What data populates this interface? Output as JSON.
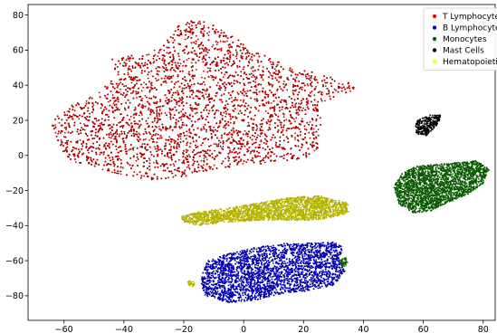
{
  "chart_data": {
    "type": "scatter",
    "title": "",
    "xlabel": "",
    "ylabel": "",
    "xlim": [
      -72,
      84
    ],
    "ylim": [
      -94,
      86
    ],
    "xticks": [
      -60,
      -40,
      -20,
      0,
      20,
      40,
      60,
      80
    ],
    "yticks": [
      -80,
      -60,
      -40,
      -20,
      0,
      20,
      40,
      60,
      80
    ],
    "grid": false,
    "legend_position": "top-right",
    "series": [
      {
        "name": "T Lymphocytes",
        "legend_label": "T Lymphocyte",
        "marker_color": "#ff0000",
        "point_color": "#b30000",
        "clusters": [
          {
            "shape": "polygon",
            "outline": [
              [
                -65,
                20
              ],
              [
                -58,
                28
              ],
              [
                -48,
                36
              ],
              [
                -43,
                46
              ],
              [
                -44,
                56
              ],
              [
                -33,
                58
              ],
              [
                -27,
                62
              ],
              [
                -24,
                70
              ],
              [
                -20,
                77
              ],
              [
                -12,
                76
              ],
              [
                -6,
                70
              ],
              [
                0,
                64
              ],
              [
                5,
                58
              ],
              [
                10,
                55
              ],
              [
                15,
                50
              ],
              [
                22,
                48
              ],
              [
                30,
                44
              ],
              [
                35,
                42
              ],
              [
                38,
                40
              ],
              [
                37,
                37
              ],
              [
                30,
                33
              ],
              [
                25,
                27
              ],
              [
                26,
                20
              ],
              [
                25,
                12
              ],
              [
                25,
                4
              ],
              [
                20,
                -2
              ],
              [
                10,
                -4
              ],
              [
                0,
                -6
              ],
              [
                -10,
                -8
              ],
              [
                -20,
                -12
              ],
              [
                -30,
                -14
              ],
              [
                -38,
                -12
              ],
              [
                -48,
                -8
              ],
              [
                -58,
                -3
              ],
              [
                -62,
                5
              ],
              [
                -63,
                12
              ]
            ],
            "count": 9000
          }
        ]
      },
      {
        "name": "B Lymphocytes",
        "legend_label": "B Lymphocyte",
        "marker_color": "#0000cc",
        "point_color": "#0000b3",
        "clusters": [
          {
            "shape": "polygon",
            "outline": [
              [
                -14,
                -68
              ],
              [
                -12,
                -60
              ],
              [
                -5,
                -56
              ],
              [
                5,
                -52
              ],
              [
                15,
                -50
              ],
              [
                25,
                -50
              ],
              [
                30,
                -49
              ],
              [
                33,
                -52
              ],
              [
                32,
                -60
              ],
              [
                34,
                -66
              ],
              [
                30,
                -74
              ],
              [
                22,
                -77
              ],
              [
                12,
                -79
              ],
              [
                3,
                -83
              ],
              [
                -5,
                -84
              ],
              [
                -13,
                -80
              ],
              [
                -14,
                -74
              ]
            ],
            "count": 4200
          }
        ]
      },
      {
        "name": "Monocytes",
        "legend_label": "Monocytes",
        "marker_color": "#006400",
        "point_color": "#0a5a00",
        "clusters": [
          {
            "shape": "polygon",
            "outline": [
              [
                50,
                -18
              ],
              [
                53,
                -10
              ],
              [
                58,
                -6
              ],
              [
                65,
                -5
              ],
              [
                72,
                -4
              ],
              [
                78,
                -3
              ],
              [
                82,
                -8
              ],
              [
                80,
                -16
              ],
              [
                75,
                -22
              ],
              [
                68,
                -27
              ],
              [
                62,
                -32
              ],
              [
                57,
                -33
              ],
              [
                52,
                -28
              ]
            ],
            "count": 2600
          },
          {
            "shape": "polygon",
            "outline": [
              [
                32,
                -60
              ],
              [
                34,
                -58
              ],
              [
                35,
                -62
              ],
              [
                33,
                -64
              ]
            ],
            "count": 40
          }
        ]
      },
      {
        "name": "Mast Cells",
        "legend_label": "Mast Cells",
        "marker_color": "#000000",
        "point_color": "#000000",
        "clusters": [
          {
            "shape": "polygon",
            "outline": [
              [
                57,
                15
              ],
              [
                58,
                20
              ],
              [
                62,
                23
              ],
              [
                66,
                23
              ],
              [
                65,
                18
              ],
              [
                61,
                11
              ],
              [
                58,
                12
              ]
            ],
            "count": 300
          }
        ]
      },
      {
        "name": "Hematopoietic",
        "legend_label": "Hematopoietic",
        "marker_color": "#ffff00",
        "point_color": "#b3b300",
        "clusters": [
          {
            "shape": "polygon",
            "outline": [
              [
                -21,
                -35
              ],
              [
                -15,
                -32
              ],
              [
                -5,
                -30
              ],
              [
                5,
                -27
              ],
              [
                15,
                -24
              ],
              [
                25,
                -23
              ],
              [
                35,
                -27
              ],
              [
                35,
                -33
              ],
              [
                25,
                -37
              ],
              [
                15,
                -37
              ],
              [
                5,
                -37
              ],
              [
                -5,
                -38
              ],
              [
                -15,
                -40
              ],
              [
                -20,
                -38
              ]
            ],
            "count": 2400
          },
          {
            "shape": "polygon",
            "outline": [
              [
                -19,
                -72
              ],
              [
                -17,
                -71
              ],
              [
                -16,
                -74
              ],
              [
                -18,
                -75
              ]
            ],
            "count": 25
          }
        ]
      }
    ]
  }
}
